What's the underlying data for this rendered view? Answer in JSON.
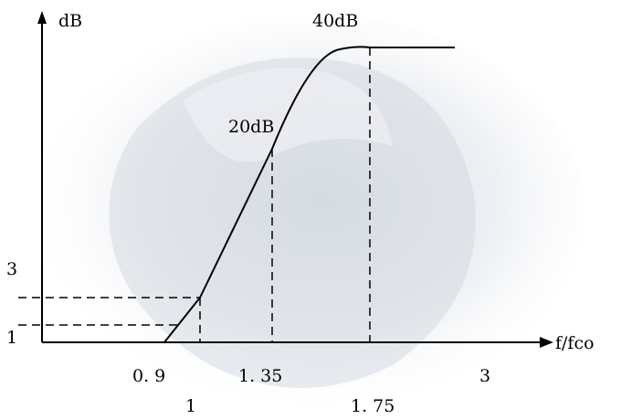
{
  "chart_data": {
    "type": "line",
    "ylabel": "dB",
    "xlabel": "f/fco",
    "x_ticks": [
      "0. 9",
      "1",
      "1. 35",
      "1. 75",
      "3"
    ],
    "y_ticks": [
      "1",
      "3"
    ],
    "annotations": [
      "20dB",
      "40dB"
    ],
    "series": [
      {
        "points": [
          {
            "x": 0.9,
            "y": 0
          },
          {
            "x": 1.0,
            "y": 3
          },
          {
            "x": 1.35,
            "y": 20
          },
          {
            "x": 1.75,
            "y": 40
          },
          {
            "x": 3.0,
            "y": 40
          }
        ]
      }
    ],
    "reference_lines": [
      {
        "x": 1.0,
        "y": 3
      },
      {
        "x": 1.35,
        "y": 20
      },
      {
        "x": 1.75,
        "y": 40
      },
      {
        "y": 1,
        "x": 0.9
      },
      {
        "y": 3,
        "x": 1.0
      }
    ],
    "colors": {
      "axis": "#000000",
      "curve": "#000000",
      "watermark": "#c6ccd6"
    }
  }
}
